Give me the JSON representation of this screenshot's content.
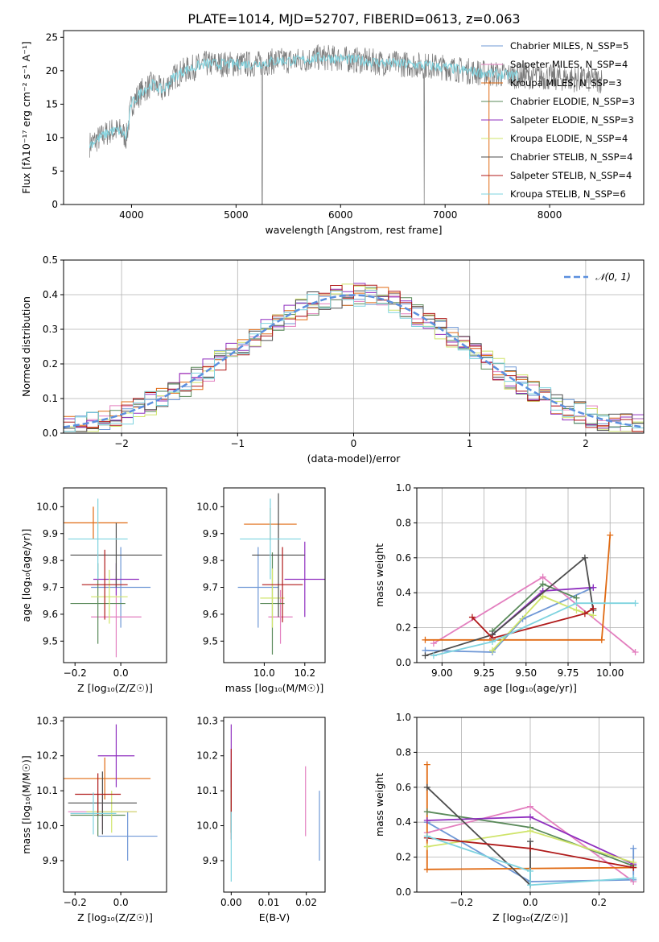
{
  "figure": {
    "title": "PLATE=1014, MJD=52707, FIBERID=0613, z=0.063"
  },
  "colors": {
    "series": [
      "#6f98d6",
      "#e37fbf",
      "#e06a12",
      "#5a8a5a",
      "#8f2fbf",
      "#cfe46a",
      "#4d4d4d",
      "#b01a1a",
      "#7ed3df"
    ],
    "gaussian": "#5b8fde",
    "grid": "#b0b0b0",
    "spectrum": "#7a7a7a"
  },
  "chart_data": [
    {
      "id": "spectrum",
      "type": "line",
      "xlabel": "wavelength [Angstrom, rest frame]",
      "ylabel": "Flux [fλ10⁻¹⁷ erg cm⁻² s⁻¹ A⁻¹]",
      "xlim": [
        3350,
        8900
      ],
      "ylim": [
        0,
        26
      ],
      "xticks": [
        4000,
        5000,
        6000,
        7000,
        8000
      ],
      "yticks": [
        0,
        5,
        10,
        15,
        20,
        25
      ],
      "grid": false,
      "legend_loc": "upper right",
      "legend": [
        "Chabrier MILES, N_SSP=5",
        "Salpeter MILES, N_SSP=4",
        "Kroupa MILES, N_SSP=3",
        "Chabrier ELODIE, N_SSP=3",
        "Salpeter ELODIE, N_SSP=3",
        "Kroupa ELODIE, N_SSP=4",
        "Chabrier STELIB, N_SSP=4",
        "Salpeter STELIB, N_SSP=4",
        "Kroupa STELIB, N_SSP=6"
      ],
      "continuum": {
        "x": [
          3600,
          3700,
          3800,
          3900,
          3950,
          4000,
          4100,
          4200,
          4300,
          4400,
          4500,
          4600,
          4700,
          4800,
          4900,
          5000,
          5200,
          5400,
          5600,
          5800,
          6000,
          6200,
          6400,
          6600,
          6800,
          7000,
          7200,
          7400,
          7600,
          7800,
          8000,
          8200,
          8400
        ],
        "y": [
          9,
          10,
          11,
          11,
          10,
          15,
          17,
          18,
          17,
          19,
          20,
          20.5,
          21,
          21,
          21,
          21,
          21,
          21.5,
          21.5,
          22,
          21.8,
          21.5,
          21.2,
          21,
          20.8,
          20.5,
          20,
          19.6,
          19.3,
          19.2,
          19,
          18.8,
          18.6
        ]
      }
    },
    {
      "id": "residuals",
      "type": "histogram",
      "xlabel": "(data-model)/error",
      "ylabel": "Normed distribution",
      "xlim": [
        -2.5,
        2.5
      ],
      "ylim": [
        0,
        0.5
      ],
      "xticks": [
        -2,
        -1,
        0,
        1,
        2
      ],
      "yticks": [
        0.0,
        0.1,
        0.2,
        0.3,
        0.4,
        0.5
      ],
      "grid": true,
      "legend": [
        "𝒩(0, 1)"
      ],
      "legend_loc": "upper right",
      "bin_width": 0.1,
      "bin_start": -2.5,
      "gaussian": {
        "mean": 0,
        "sigma": 1
      }
    },
    {
      "id": "age_vs_Z",
      "type": "errorbar",
      "xlabel": "Z [log₁₀(Z/Z☉)]",
      "ylabel": "age  [log₁₀(age/yr)]",
      "xlim": [
        -0.25,
        0.2
      ],
      "ylim": [
        9.42,
        10.07
      ],
      "xticks": [
        -0.2,
        0.0
      ],
      "yticks": [
        9.5,
        9.6,
        9.7,
        9.8,
        9.9,
        10.0
      ],
      "points": [
        {
          "x": 0.0,
          "y": 9.7,
          "xerr": 0.13,
          "yerr": 0.15
        },
        {
          "x": -0.02,
          "y": 9.59,
          "xerr": 0.11,
          "yerr": 0.15
        },
        {
          "x": -0.12,
          "y": 9.94,
          "xerr": 0.15,
          "yerr": 0.06
        },
        {
          "x": -0.1,
          "y": 9.64,
          "xerr": 0.12,
          "yerr": 0.15
        },
        {
          "x": -0.02,
          "y": 9.73,
          "xerr": 0.1,
          "yerr": 0.06
        },
        {
          "x": -0.05,
          "y": 9.665,
          "xerr": 0.08,
          "yerr": 0.1
        },
        {
          "x": -0.02,
          "y": 9.82,
          "xerr": 0.2,
          "yerr": 0.12
        },
        {
          "x": -0.07,
          "y": 9.71,
          "xerr": 0.1,
          "yerr": 0.13
        },
        {
          "x": -0.1,
          "y": 9.88,
          "xerr": 0.13,
          "yerr": 0.15
        }
      ]
    },
    {
      "id": "age_vs_mass",
      "type": "errorbar",
      "xlabel": "mass [log₁₀(M/M☉)]",
      "ylabel": "",
      "xlim": [
        9.8,
        10.3
      ],
      "ylim": [
        9.42,
        10.07
      ],
      "xticks": [
        10.0,
        10.2
      ],
      "yticks": [
        9.5,
        9.6,
        9.7,
        9.8,
        9.9,
        10.0
      ],
      "points": [
        {
          "x": 9.97,
          "y": 9.7,
          "xerr": 0.1,
          "yerr": 0.15
        },
        {
          "x": 10.08,
          "y": 9.59,
          "xerr": 0.06,
          "yerr": 0.1
        },
        {
          "x": 10.03,
          "y": 9.935,
          "xerr": 0.13,
          "yerr": 0.06
        },
        {
          "x": 10.04,
          "y": 9.64,
          "xerr": 0.06,
          "yerr": 0.19
        },
        {
          "x": 10.2,
          "y": 9.73,
          "xerr": 0.1,
          "yerr": 0.14
        },
        {
          "x": 10.04,
          "y": 9.66,
          "xerr": 0.06,
          "yerr": 0.11
        },
        {
          "x": 10.07,
          "y": 9.82,
          "xerr": 0.13,
          "yerr": 0.23
        },
        {
          "x": 10.09,
          "y": 9.71,
          "xerr": 0.1,
          "yerr": 0.14
        },
        {
          "x": 10.03,
          "y": 9.88,
          "xerr": 0.15,
          "yerr": 0.15
        }
      ]
    },
    {
      "id": "weight_vs_age",
      "type": "line",
      "xlabel": "age  [log₁₀(age/yr)]",
      "ylabel": "mass weight",
      "xlim": [
        8.85,
        10.2
      ],
      "ylim": [
        0,
        1
      ],
      "xticks": [
        9.0,
        9.25,
        9.5,
        9.75,
        10.0
      ],
      "yticks": [
        0.0,
        0.2,
        0.4,
        0.6,
        0.8,
        1.0
      ],
      "grid": true,
      "series": [
        {
          "x": [
            8.9,
            9.3,
            9.48,
            9.9
          ],
          "y": [
            0.07,
            0.06,
            0.25,
            0.43
          ]
        },
        {
          "x": [
            8.95,
            9.6,
            10.15
          ],
          "y": [
            0.11,
            0.49,
            0.06
          ]
        },
        {
          "x": [
            8.9,
            9.95,
            10.0
          ],
          "y": [
            0.13,
            0.13,
            0.73
          ]
        },
        {
          "x": [
            9.3,
            9.6,
            9.8
          ],
          "y": [
            0.18,
            0.45,
            0.37
          ]
        },
        {
          "x": [
            9.3,
            9.6,
            9.9
          ],
          "y": [
            0.16,
            0.41,
            0.43
          ]
        },
        {
          "x": [
            9.3,
            9.6,
            9.8,
            9.9
          ],
          "y": [
            0.07,
            0.38,
            0.3,
            0.27
          ]
        },
        {
          "x": [
            8.9,
            9.3,
            9.85,
            9.9
          ],
          "y": [
            0.04,
            0.16,
            0.6,
            0.3
          ]
        },
        {
          "x": [
            9.18,
            9.3,
            9.85,
            9.9
          ],
          "y": [
            0.26,
            0.14,
            0.28,
            0.31
          ]
        },
        {
          "x": [
            8.95,
            9.3,
            9.8,
            10.15
          ],
          "y": [
            0.04,
            0.12,
            0.34,
            0.34
          ]
        }
      ]
    },
    {
      "id": "mass_vs_Z",
      "type": "errorbar",
      "xlabel": "Z [log₁₀(Z/Z☉)]",
      "ylabel": "mass [log₁₀(M/M☉)]",
      "xlim": [
        -0.25,
        0.2
      ],
      "ylim": [
        9.81,
        10.31
      ],
      "xticks": [
        -0.2,
        0.0
      ],
      "yticks": [
        9.9,
        10.0,
        10.1,
        10.2,
        10.3
      ],
      "points": [
        {
          "x": 0.03,
          "y": 9.97,
          "xerr": 0.13,
          "yerr": 0.07
        },
        {
          "x": -0.08,
          "y": 10.04,
          "xerr": 0.15,
          "yerr": 0.05
        },
        {
          "x": -0.07,
          "y": 10.135,
          "xerr": 0.2,
          "yerr": 0.06
        },
        {
          "x": -0.1,
          "y": 10.03,
          "xerr": 0.12,
          "yerr": 0.06
        },
        {
          "x": -0.02,
          "y": 10.2,
          "xerr": 0.08,
          "yerr": 0.09
        },
        {
          "x": -0.04,
          "y": 10.04,
          "xerr": 0.11,
          "yerr": 0.06
        },
        {
          "x": -0.08,
          "y": 10.065,
          "xerr": 0.15,
          "yerr": 0.09
        },
        {
          "x": -0.1,
          "y": 10.09,
          "xerr": 0.1,
          "yerr": 0.06
        },
        {
          "x": -0.12,
          "y": 10.035,
          "xerr": 0.1,
          "yerr": 0.06
        }
      ]
    },
    {
      "id": "mass_vs_ebv",
      "type": "errorbar",
      "xlabel": "E(B-V)",
      "ylabel": "",
      "xlim": [
        -0.002,
        0.025
      ],
      "ylim": [
        9.81,
        10.31
      ],
      "xticks": [
        0.0,
        0.01,
        0.02
      ],
      "yticks": [
        9.9,
        10.0,
        10.1,
        10.2,
        10.3
      ],
      "points": [
        {
          "x": 0.0235,
          "y": 10.0,
          "xerr": 0,
          "yerr": 0.1
        },
        {
          "x": 0.0198,
          "y": 10.07,
          "xerr": 0,
          "yerr": 0.1
        },
        {
          "x": 0.0,
          "y": 10.13,
          "xerr": 0,
          "yerr": 0.05
        },
        {
          "x": 0.0,
          "y": 10.04,
          "xerr": 0,
          "yerr": 0.06
        },
        {
          "x": 0.0,
          "y": 10.2,
          "xerr": 0,
          "yerr": 0.09
        },
        {
          "x": 0.0,
          "y": 10.04,
          "xerr": 0,
          "yerr": 0.06
        },
        {
          "x": 0.0,
          "y": 10.07,
          "xerr": 0,
          "yerr": 0.09
        },
        {
          "x": 0.0,
          "y": 10.09,
          "xerr": 0,
          "yerr": 0.13
        },
        {
          "x": 0.0,
          "y": 9.94,
          "xerr": 0,
          "yerr": 0.1
        }
      ]
    },
    {
      "id": "weight_vs_Z",
      "type": "line",
      "xlabel": "Z [log₁₀(Z/Z☉)]",
      "ylabel": "mass weight",
      "xlim": [
        -0.33,
        0.33
      ],
      "ylim": [
        0,
        1
      ],
      "xticks": [
        -0.2,
        0.0,
        0.2
      ],
      "yticks": [
        0.0,
        0.2,
        0.4,
        0.6,
        0.8,
        1.0
      ],
      "grid": true,
      "series": [
        {
          "x": [
            -0.3,
            0.0,
            0.3,
            0.3
          ],
          "y": [
            0.4,
            0.06,
            0.07,
            0.25
          ]
        },
        {
          "x": [
            -0.3,
            0.0,
            0.3
          ],
          "y": [
            0.34,
            0.49,
            0.06
          ]
        },
        {
          "x": [
            -0.3,
            -0.3,
            0.3
          ],
          "y": [
            0.73,
            0.13,
            0.14
          ]
        },
        {
          "x": [
            -0.3,
            0.0,
            0.3
          ],
          "y": [
            0.46,
            0.37,
            0.15
          ]
        },
        {
          "x": [
            -0.3,
            0.0,
            0.3
          ],
          "y": [
            0.41,
            0.43,
            0.16
          ]
        },
        {
          "x": [
            -0.3,
            0.0,
            0.3
          ],
          "y": [
            0.26,
            0.35,
            0.17
          ]
        },
        {
          "x": [
            -0.3,
            0.0,
            0.0
          ],
          "y": [
            0.6,
            0.04,
            0.29
          ]
        },
        {
          "x": [
            -0.3,
            0.0,
            0.3
          ],
          "y": [
            0.31,
            0.25,
            0.14
          ]
        },
        {
          "x": [
            -0.3,
            0.0,
            0.0,
            0.3
          ],
          "y": [
            0.32,
            0.12,
            0.04,
            0.08
          ]
        }
      ]
    }
  ]
}
